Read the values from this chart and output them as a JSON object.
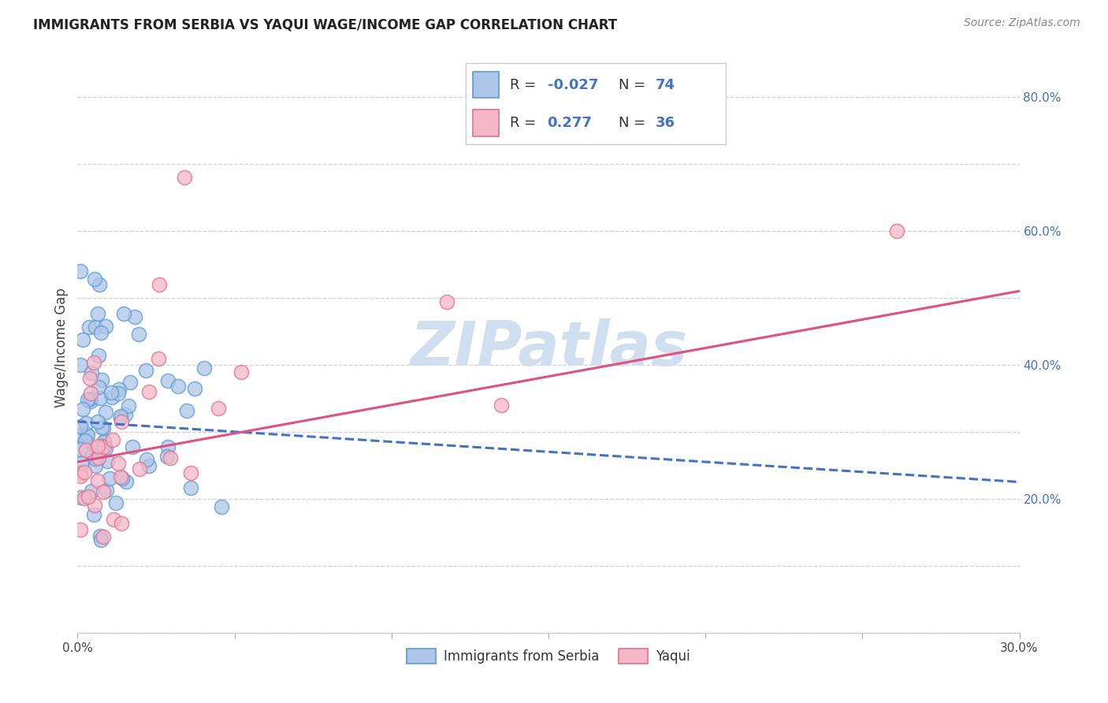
{
  "title": "IMMIGRANTS FROM SERBIA VS YAQUI WAGE/INCOME GAP CORRELATION CHART",
  "source": "Source: ZipAtlas.com",
  "ylabel": "Wage/Income Gap",
  "x_min": 0.0,
  "x_max": 0.3,
  "y_min": 0.0,
  "y_max": 0.85,
  "serbia_color": "#aec6e8",
  "serbia_edge_color": "#5b9bd5",
  "yaqui_color": "#f4b8c8",
  "yaqui_edge_color": "#e07090",
  "serbia_line_color": "#4472c4",
  "yaqui_line_color": "#e05080",
  "serbia_R": -0.027,
  "serbia_N": 74,
  "yaqui_R": 0.277,
  "yaqui_N": 36,
  "serbia_intercept": 0.315,
  "serbia_slope": -0.3,
  "yaqui_intercept": 0.255,
  "yaqui_slope": 0.85,
  "watermark": "ZIPatlas",
  "watermark_color": "#d0dff0",
  "grid_color": "#cccccc",
  "title_fontsize": 12,
  "axis_tick_fontsize": 11,
  "legend_fontsize": 13
}
